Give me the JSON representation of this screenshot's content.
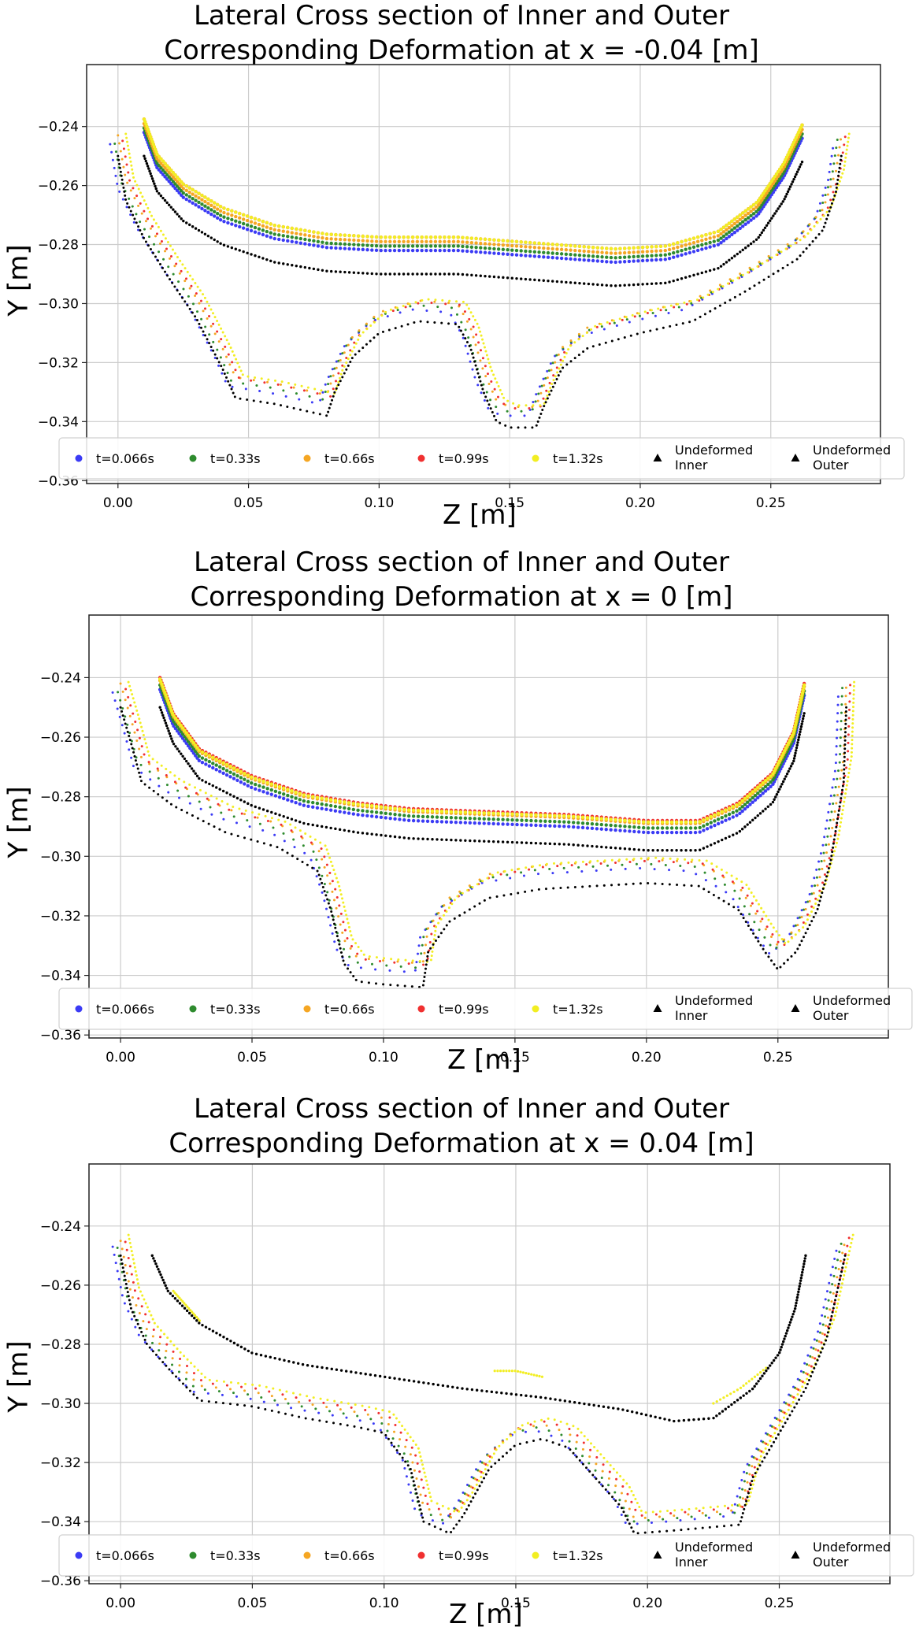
{
  "chart_data": [
    {
      "type": "scatter",
      "title": "Lateral Cross section of Inner and Outer\nCorresponding Deformation at x = -0.04 [m]",
      "xlabel": "Z [m]",
      "ylabel": "Y [m]",
      "xlim": [
        -0.012,
        0.292
      ],
      "ylim": [
        -0.361,
        -0.219
      ],
      "xticks": [
        "0.00",
        "0.05",
        "0.10",
        "0.15",
        "0.20",
        "0.25"
      ],
      "yticks": [
        "−0.24",
        "−0.26",
        "−0.28",
        "−0.30",
        "−0.32",
        "−0.34",
        "−0.36"
      ],
      "grid": true,
      "legend_position": "bottom",
      "inner_undeformed": [
        [
          0.01,
          -0.25
        ],
        [
          0.015,
          -0.262
        ],
        [
          0.025,
          -0.272
        ],
        [
          0.04,
          -0.28
        ],
        [
          0.06,
          -0.286
        ],
        [
          0.08,
          -0.289
        ],
        [
          0.1,
          -0.29
        ],
        [
          0.13,
          -0.29
        ],
        [
          0.16,
          -0.292
        ],
        [
          0.19,
          -0.294
        ],
        [
          0.21,
          -0.293
        ],
        [
          0.23,
          -0.288
        ],
        [
          0.245,
          -0.278
        ],
        [
          0.255,
          -0.265
        ],
        [
          0.262,
          -0.252
        ]
      ],
      "inner_deformed_shift": [
        0.008,
        0.0095,
        0.011,
        0.0125,
        0.0125
      ],
      "outer_undeformed": [
        [
          0.0,
          -0.25
        ],
        [
          0.003,
          -0.265
        ],
        [
          0.01,
          -0.278
        ],
        [
          0.02,
          -0.292
        ],
        [
          0.03,
          -0.305
        ],
        [
          0.04,
          -0.322
        ],
        [
          0.045,
          -0.332
        ],
        [
          0.06,
          -0.334
        ],
        [
          0.07,
          -0.336
        ],
        [
          0.08,
          -0.338
        ],
        [
          0.083,
          -0.33
        ],
        [
          0.09,
          -0.318
        ],
        [
          0.1,
          -0.31
        ],
        [
          0.115,
          -0.306
        ],
        [
          0.13,
          -0.307
        ],
        [
          0.135,
          -0.315
        ],
        [
          0.14,
          -0.33
        ],
        [
          0.145,
          -0.34
        ],
        [
          0.15,
          -0.342
        ],
        [
          0.16,
          -0.342
        ],
        [
          0.163,
          -0.335
        ],
        [
          0.17,
          -0.322
        ],
        [
          0.18,
          -0.315
        ],
        [
          0.2,
          -0.31
        ],
        [
          0.22,
          -0.306
        ],
        [
          0.24,
          -0.296
        ],
        [
          0.26,
          -0.285
        ],
        [
          0.27,
          -0.275
        ],
        [
          0.275,
          -0.262
        ],
        [
          0.277,
          -0.25
        ]
      ],
      "outer_deformed_shift": [
        0.004,
        0.0055,
        0.007,
        0.0065,
        0.0075
      ],
      "series": [
        {
          "name": "t=0.066s",
          "color": "#3b3bf5",
          "marker": "circle"
        },
        {
          "name": "t=0.33s",
          "color": "#2e8b2e",
          "marker": "circle"
        },
        {
          "name": "t=0.66s",
          "color": "#f5a623",
          "marker": "circle"
        },
        {
          "name": "t=0.99s",
          "color": "#f03030",
          "marker": "circle"
        },
        {
          "name": "t=1.32s",
          "color": "#f2ee22",
          "marker": "circle"
        },
        {
          "name": "Undeformed\nInner",
          "color": "#000000",
          "marker": "triangle"
        },
        {
          "name": "Undeformed\nOuter",
          "color": "#000000",
          "marker": "triangle"
        }
      ]
    },
    {
      "type": "scatter",
      "title": "Lateral Cross section of Inner and Outer\nCorresponding Deformation at x = 0 [m]",
      "xlabel": "Z [m]",
      "ylabel": "Y [m]",
      "xlim": [
        -0.012,
        0.292
      ],
      "ylim": [
        -0.361,
        -0.219
      ],
      "xticks": [
        "0.00",
        "0.05",
        "0.10",
        "0.15",
        "0.20",
        "0.25"
      ],
      "yticks": [
        "−0.24",
        "−0.26",
        "−0.28",
        "−0.30",
        "−0.32",
        "−0.34",
        "−0.36"
      ],
      "grid": true,
      "legend_position": "bottom",
      "inner_undeformed": [
        [
          0.015,
          -0.25
        ],
        [
          0.02,
          -0.262
        ],
        [
          0.03,
          -0.274
        ],
        [
          0.05,
          -0.283
        ],
        [
          0.07,
          -0.289
        ],
        [
          0.09,
          -0.292
        ],
        [
          0.11,
          -0.294
        ],
        [
          0.14,
          -0.295
        ],
        [
          0.17,
          -0.296
        ],
        [
          0.2,
          -0.298
        ],
        [
          0.22,
          -0.298
        ],
        [
          0.235,
          -0.292
        ],
        [
          0.248,
          -0.282
        ],
        [
          0.256,
          -0.268
        ],
        [
          0.26,
          -0.252
        ]
      ],
      "inner_deformed_shift": [
        0.006,
        0.0075,
        0.009,
        0.01,
        0.0095
      ],
      "outer_undeformed": [
        [
          0.0,
          -0.25
        ],
        [
          0.004,
          -0.262
        ],
        [
          0.008,
          -0.275
        ],
        [
          0.02,
          -0.283
        ],
        [
          0.04,
          -0.292
        ],
        [
          0.06,
          -0.297
        ],
        [
          0.075,
          -0.305
        ],
        [
          0.08,
          -0.318
        ],
        [
          0.085,
          -0.336
        ],
        [
          0.09,
          -0.342
        ],
        [
          0.1,
          -0.343
        ],
        [
          0.115,
          -0.344
        ],
        [
          0.117,
          -0.332
        ],
        [
          0.125,
          -0.322
        ],
        [
          0.14,
          -0.314
        ],
        [
          0.16,
          -0.311
        ],
        [
          0.18,
          -0.31
        ],
        [
          0.2,
          -0.309
        ],
        [
          0.22,
          -0.31
        ],
        [
          0.235,
          -0.318
        ],
        [
          0.245,
          -0.332
        ],
        [
          0.25,
          -0.338
        ],
        [
          0.257,
          -0.332
        ],
        [
          0.265,
          -0.318
        ],
        [
          0.27,
          -0.302
        ],
        [
          0.275,
          -0.275
        ],
        [
          0.276,
          -0.25
        ]
      ],
      "outer_deformed_shift": [
        0.005,
        0.0065,
        0.008,
        0.0075,
        0.0085
      ],
      "series": [
        {
          "name": "t=0.066s",
          "color": "#3b3bf5",
          "marker": "circle"
        },
        {
          "name": "t=0.33s",
          "color": "#2e8b2e",
          "marker": "circle"
        },
        {
          "name": "t=0.66s",
          "color": "#f5a623",
          "marker": "circle"
        },
        {
          "name": "t=0.99s",
          "color": "#f03030",
          "marker": "circle"
        },
        {
          "name": "t=1.32s",
          "color": "#f2ee22",
          "marker": "circle"
        },
        {
          "name": "Undeformed\nInner",
          "color": "#000000",
          "marker": "triangle"
        },
        {
          "name": "Undeformed\nOuter",
          "color": "#000000",
          "marker": "triangle"
        }
      ]
    },
    {
      "type": "scatter",
      "title": "Lateral Cross section of Inner and Outer\nCorresponding Deformation at x = 0.04 [m]",
      "xlabel": "Z [m]",
      "ylabel": "Y [m]",
      "xlim": [
        -0.012,
        0.292
      ],
      "ylim": [
        -0.361,
        -0.219
      ],
      "xticks": [
        "0.00",
        "0.05",
        "0.10",
        "0.15",
        "0.20",
        "0.25"
      ],
      "yticks": [
        "−0.24",
        "−0.26",
        "−0.28",
        "−0.30",
        "−0.32",
        "−0.34",
        "−0.36"
      ],
      "grid": true,
      "legend_position": "bottom",
      "inner_undeformed": [
        [
          0.012,
          -0.25
        ],
        [
          0.018,
          -0.262
        ],
        [
          0.03,
          -0.273
        ],
        [
          0.05,
          -0.283
        ],
        [
          0.07,
          -0.287
        ],
        [
          0.1,
          -0.291
        ],
        [
          0.13,
          -0.295
        ],
        [
          0.16,
          -0.298
        ],
        [
          0.19,
          -0.302
        ],
        [
          0.21,
          -0.306
        ],
        [
          0.225,
          -0.305
        ],
        [
          0.24,
          -0.295
        ],
        [
          0.25,
          -0.283
        ],
        [
          0.256,
          -0.268
        ],
        [
          0.26,
          -0.25
        ]
      ],
      "inner_deformed_shift": [
        0.0,
        0.0,
        0.0,
        0.0,
        0.0
      ],
      "outer_undeformed": [
        [
          0.0,
          -0.25
        ],
        [
          0.004,
          -0.268
        ],
        [
          0.01,
          -0.28
        ],
        [
          0.02,
          -0.29
        ],
        [
          0.03,
          -0.299
        ],
        [
          0.05,
          -0.301
        ],
        [
          0.07,
          -0.305
        ],
        [
          0.09,
          -0.308
        ],
        [
          0.1,
          -0.31
        ],
        [
          0.11,
          -0.322
        ],
        [
          0.115,
          -0.34
        ],
        [
          0.125,
          -0.344
        ],
        [
          0.13,
          -0.338
        ],
        [
          0.14,
          -0.322
        ],
        [
          0.15,
          -0.314
        ],
        [
          0.16,
          -0.312
        ],
        [
          0.17,
          -0.315
        ],
        [
          0.18,
          -0.325
        ],
        [
          0.19,
          -0.335
        ],
        [
          0.195,
          -0.344
        ],
        [
          0.21,
          -0.343
        ],
        [
          0.235,
          -0.341
        ],
        [
          0.24,
          -0.325
        ],
        [
          0.25,
          -0.31
        ],
        [
          0.26,
          -0.295
        ],
        [
          0.268,
          -0.278
        ],
        [
          0.272,
          -0.262
        ],
        [
          0.275,
          -0.25
        ]
      ],
      "outer_deformed_shift": [
        0.003,
        0.004,
        0.005,
        0.006,
        0.007
      ],
      "yellow_fragments": [
        [
          [
            0.142,
            -0.289
          ],
          [
            0.15,
            -0.289
          ],
          [
            0.16,
            -0.291
          ]
        ],
        [
          [
            0.225,
            -0.3
          ],
          [
            0.235,
            -0.295
          ],
          [
            0.245,
            -0.288
          ]
        ],
        [
          [
            0.02,
            -0.262
          ],
          [
            0.03,
            -0.272
          ]
        ]
      ],
      "series": [
        {
          "name": "t=0.066s",
          "color": "#3b3bf5",
          "marker": "circle"
        },
        {
          "name": "t=0.33s",
          "color": "#2e8b2e",
          "marker": "circle"
        },
        {
          "name": "t=0.66s",
          "color": "#f5a623",
          "marker": "circle"
        },
        {
          "name": "t=0.99s",
          "color": "#f03030",
          "marker": "circle"
        },
        {
          "name": "t=1.32s",
          "color": "#f2ee22",
          "marker": "circle"
        },
        {
          "name": "Undeformed\nInner",
          "color": "#000000",
          "marker": "triangle"
        },
        {
          "name": "Undeformed\nOuter",
          "color": "#000000",
          "marker": "triangle"
        }
      ]
    }
  ]
}
